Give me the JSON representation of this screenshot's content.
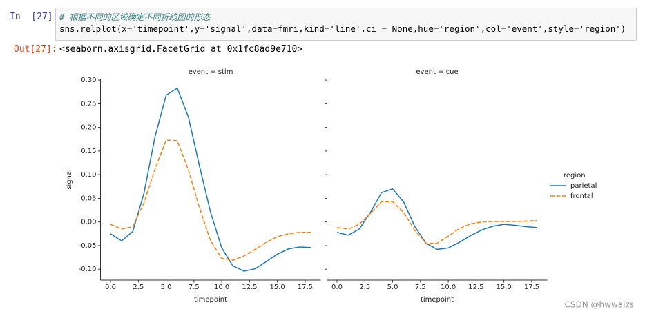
{
  "input_prompt": "In  [27]:",
  "code_lines": [
    "# 根据不同的区域确定不同折线图的形态",
    "sns.relplot(x='timepoint',y='signal',data=fmri,kind='line',ci = None,hue='region',col='event',style='region')"
  ],
  "output_prompt": "Out[27]:",
  "output_text": "<seaborn.axisgrid.FacetGrid at 0x1fc8ad9e710>",
  "watermark": "CSDN @hwwaizs",
  "legend": {
    "title": "region",
    "entries": [
      {
        "name": "parietal",
        "color": "#1f77b4",
        "linestyle": "solid"
      },
      {
        "name": "frontal",
        "color": "#ff7f0e",
        "linestyle": "dashed"
      }
    ]
  },
  "chart_data": [
    {
      "type": "line",
      "title": "event = stim",
      "x_label": "timepoint",
      "y_label": "signal",
      "x": [
        0,
        1,
        2,
        3,
        4,
        5,
        6,
        7,
        8,
        9,
        10,
        11,
        12,
        13,
        14,
        15,
        16,
        17,
        18
      ],
      "series": [
        {
          "color": "#1f77b4",
          "linestyle": "solid",
          "values": [
            -0.025,
            -0.04,
            -0.02,
            0.06,
            0.18,
            0.268,
            0.283,
            0.222,
            0.118,
            0.02,
            -0.055,
            -0.093,
            -0.104,
            -0.099,
            -0.084,
            -0.068,
            -0.057,
            -0.053,
            -0.054
          ]
        },
        {
          "color": "#ff7f0e",
          "linestyle": "dashed",
          "values": [
            -0.005,
            -0.015,
            -0.01,
            0.04,
            0.112,
            0.173,
            0.172,
            0.11,
            0.03,
            -0.04,
            -0.077,
            -0.081,
            -0.072,
            -0.058,
            -0.043,
            -0.031,
            -0.025,
            -0.022,
            -0.022
          ]
        }
      ],
      "xlim": [
        -0.9,
        18.9
      ],
      "ylim": [
        -0.123,
        0.303
      ],
      "xticks": [
        {
          "value": 0,
          "label": "0.0"
        },
        2.5,
        {
          "value": 5,
          "label": "5.0"
        },
        7.5,
        {
          "value": 10,
          "label": "10.0"
        },
        12.5,
        {
          "value": 15,
          "label": "15.0"
        },
        17.5
      ],
      "yticks": [
        {
          "value": -0.1,
          "label": "-0.10"
        },
        {
          "value": -0.05,
          "label": "-0.05"
        },
        {
          "value": 0,
          "label": "0.00"
        },
        {
          "value": 0.05,
          "label": "0.05"
        },
        {
          "value": 0.1,
          "label": "0.10"
        },
        {
          "value": 0.15,
          "label": "0.15"
        },
        {
          "value": 0.2,
          "label": "0.20"
        },
        {
          "value": 0.25,
          "label": "0.25"
        },
        {
          "value": 0.3,
          "label": "0.30"
        }
      ]
    },
    {
      "type": "line",
      "title": "event = cue",
      "x_label": "timepoint",
      "x": [
        0,
        1,
        2,
        3,
        4,
        5,
        6,
        7,
        8,
        9,
        10,
        11,
        12,
        13,
        14,
        15,
        16,
        17,
        18
      ],
      "series": [
        {
          "color": "#1f77b4",
          "linestyle": "solid",
          "values": [
            -0.022,
            -0.028,
            -0.015,
            0.02,
            0.062,
            0.07,
            0.042,
            -0.01,
            -0.045,
            -0.058,
            -0.055,
            -0.043,
            -0.029,
            -0.017,
            -0.009,
            -0.005,
            -0.007,
            -0.01,
            -0.012
          ]
        },
        {
          "color": "#ff7f0e",
          "linestyle": "dashed",
          "values": [
            -0.012,
            -0.015,
            -0.005,
            0.018,
            0.043,
            0.043,
            0.02,
            -0.018,
            -0.045,
            -0.045,
            -0.03,
            -0.014,
            -0.004,
            0.0,
            0.001,
            0.001,
            0.001,
            0.002,
            0.003
          ]
        }
      ],
      "xlim": [
        -0.9,
        18.9
      ],
      "ylim": [
        -0.123,
        0.303
      ],
      "xticks": [
        {
          "value": 0,
          "label": "0.0"
        },
        2.5,
        {
          "value": 5,
          "label": "5.0"
        },
        7.5,
        {
          "value": 10,
          "label": "10.0"
        },
        12.5,
        {
          "value": 15,
          "label": "15.0"
        },
        17.5
      ],
      "yticks": [
        -0.1,
        -0.05,
        0,
        0.05,
        0.1,
        0.15,
        0.2,
        0.25,
        0.3
      ]
    }
  ]
}
